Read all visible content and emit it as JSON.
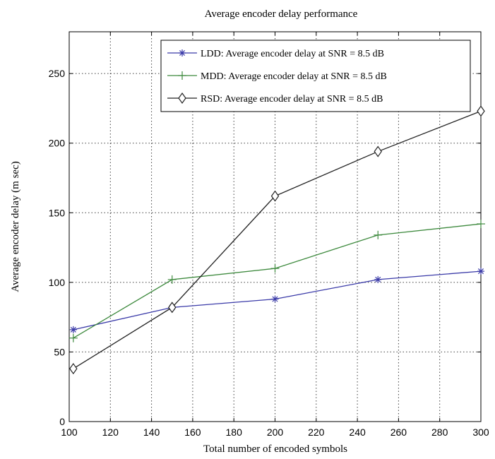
{
  "chart_data": {
    "type": "line",
    "title": "Average encoder delay performance",
    "xlabel": "Total number of encoded symbols",
    "ylabel": "Average encoder delay (m sec)",
    "xlim": [
      100,
      300
    ],
    "ylim": [
      0,
      280
    ],
    "xticks": [
      100,
      120,
      140,
      160,
      180,
      200,
      220,
      240,
      260,
      280,
      300
    ],
    "yticks": [
      0,
      50,
      100,
      150,
      200,
      250
    ],
    "grid": true,
    "legend_position": "top-right",
    "x": [
      102,
      150,
      200,
      250,
      300
    ],
    "series": [
      {
        "name": "LDD: Average encoder delay at SNR = 8.5 dB",
        "values": [
          66,
          82,
          88,
          102,
          108
        ],
        "color": "#3a3aa8",
        "marker": "asterisk"
      },
      {
        "name": "MDD: Average encoder delay at SNR = 8.5 dB",
        "values": [
          60,
          102,
          110,
          134,
          142
        ],
        "color": "#3e8a3e",
        "marker": "plus"
      },
      {
        "name": "RSD: Average encoder delay at SNR = 8.5 dB",
        "values": [
          38,
          82,
          162,
          194,
          223
        ],
        "color": "#222222",
        "marker": "diamond"
      }
    ]
  }
}
